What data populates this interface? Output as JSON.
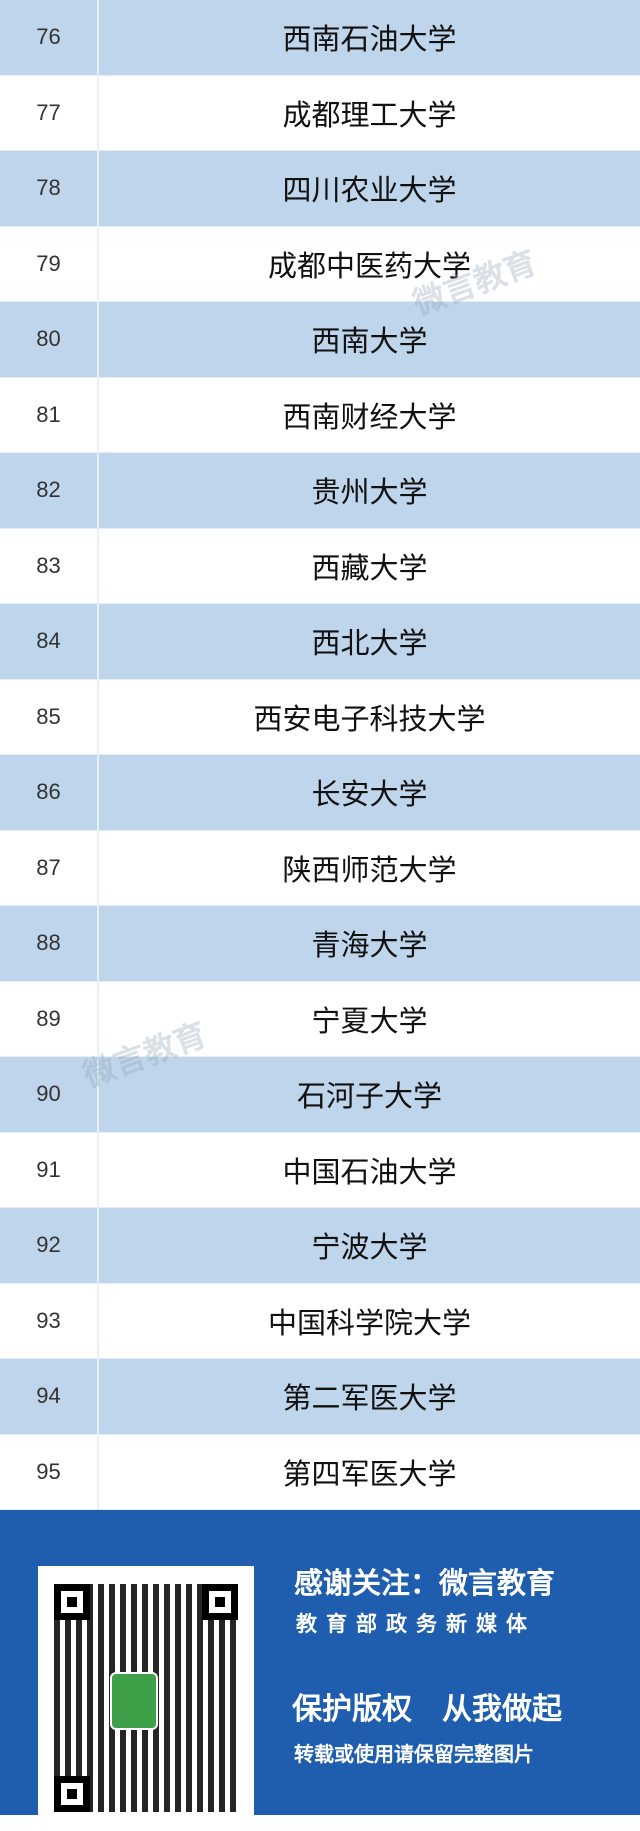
{
  "rows": [
    {
      "rank": "76",
      "name": "西南石油大学"
    },
    {
      "rank": "77",
      "name": "成都理工大学"
    },
    {
      "rank": "78",
      "name": "四川农业大学"
    },
    {
      "rank": "79",
      "name": "成都中医药大学"
    },
    {
      "rank": "80",
      "name": "西南大学"
    },
    {
      "rank": "81",
      "name": "西南财经大学"
    },
    {
      "rank": "82",
      "name": "贵州大学"
    },
    {
      "rank": "83",
      "name": "西藏大学"
    },
    {
      "rank": "84",
      "name": "西北大学"
    },
    {
      "rank": "85",
      "name": "西安电子科技大学"
    },
    {
      "rank": "86",
      "name": "长安大学"
    },
    {
      "rank": "87",
      "name": "陕西师范大学"
    },
    {
      "rank": "88",
      "name": "青海大学"
    },
    {
      "rank": "89",
      "name": "宁夏大学"
    },
    {
      "rank": "90",
      "name": "石河子大学"
    },
    {
      "rank": "91",
      "name": "中国石油大学"
    },
    {
      "rank": "92",
      "name": "宁波大学"
    },
    {
      "rank": "93",
      "name": "中国科学院大学"
    },
    {
      "rank": "94",
      "name": "第二军医大学"
    },
    {
      "rank": "95",
      "name": "第四军医大学"
    }
  ],
  "watermark": "微言教育",
  "footer": {
    "line1": "感谢关注：微言教育",
    "line2": "教育部政务新媒体",
    "line3": "保护版权　从我做起",
    "line4": "转载或使用请保留完整图片"
  },
  "colors": {
    "stripe": "#bed5eb",
    "footer": "#1f5eae"
  }
}
